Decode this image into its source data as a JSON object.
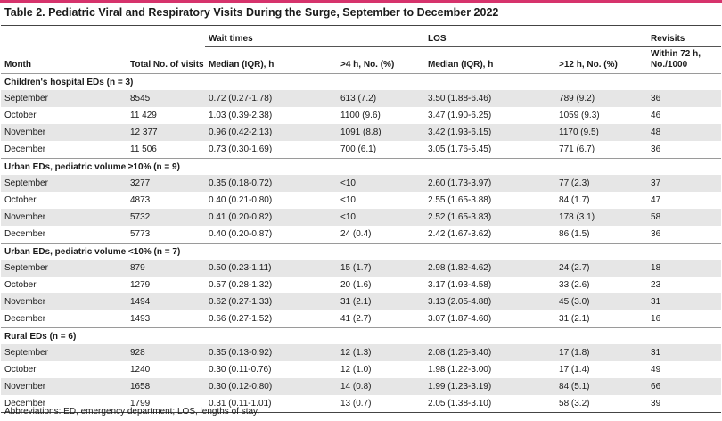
{
  "title": "Table 2. Pediatric Viral and Respiratory Visits During the Surge, September to December 2022",
  "header": {
    "group_wait": "Wait times",
    "group_los": "LOS",
    "group_revisits": "Revisits",
    "col_month": "Month",
    "col_total": "Total No. of visits",
    "col_wait_median": "Median (IQR), h",
    "col_wait_over4": ">4 h, No. (%)",
    "col_los_median": "Median (IQR), h",
    "col_los_over12": ">12 h, No. (%)",
    "col_revisits": "Within 72 h, No./1000"
  },
  "sections": [
    {
      "label": "Children's hospital EDs (n = 3)",
      "rows": [
        {
          "month": "September",
          "total": "8545",
          "wait_median": "0.72 (0.27-1.78)",
          "wait_over4": "613 (7.2)",
          "los_median": "3.50 (1.88-6.46)",
          "los_over12": "789 (9.2)",
          "revisits": "36"
        },
        {
          "month": "October",
          "total": "11 429",
          "wait_median": "1.03 (0.39-2.38)",
          "wait_over4": "1100 (9.6)",
          "los_median": "3.47 (1.90-6.25)",
          "los_over12": "1059 (9.3)",
          "revisits": "46"
        },
        {
          "month": "November",
          "total": "12 377",
          "wait_median": "0.96 (0.42-2.13)",
          "wait_over4": "1091 (8.8)",
          "los_median": "3.42 (1.93-6.15)",
          "los_over12": "1170 (9.5)",
          "revisits": "48"
        },
        {
          "month": "December",
          "total": "11 506",
          "wait_median": "0.73 (0.30-1.69)",
          "wait_over4": "700 (6.1)",
          "los_median": "3.05 (1.76-5.45)",
          "los_over12": "771 (6.7)",
          "revisits": "36"
        }
      ]
    },
    {
      "label": "Urban EDs, pediatric volume ≥10% (n = 9)",
      "rows": [
        {
          "month": "September",
          "total": "3277",
          "wait_median": "0.35 (0.18-0.72)",
          "wait_over4": "<10",
          "los_median": "2.60 (1.73-3.97)",
          "los_over12": "77 (2.3)",
          "revisits": "37"
        },
        {
          "month": "October",
          "total": "4873",
          "wait_median": "0.40 (0.21-0.80)",
          "wait_over4": "<10",
          "los_median": "2.55 (1.65-3.88)",
          "los_over12": "84 (1.7)",
          "revisits": "47"
        },
        {
          "month": "November",
          "total": "5732",
          "wait_median": "0.41 (0.20-0.82)",
          "wait_over4": "<10",
          "los_median": "2.52 (1.65-3.83)",
          "los_over12": "178 (3.1)",
          "revisits": "58"
        },
        {
          "month": "December",
          "total": "5773",
          "wait_median": "0.40 (0.20-0.87)",
          "wait_over4": "24 (0.4)",
          "los_median": "2.42 (1.67-3.62)",
          "los_over12": "86 (1.5)",
          "revisits": "36"
        }
      ]
    },
    {
      "label": "Urban EDs, pediatric volume <10% (n = 7)",
      "rows": [
        {
          "month": "September",
          "total": "879",
          "wait_median": "0.50 (0.23-1.11)",
          "wait_over4": "15 (1.7)",
          "los_median": "2.98 (1.82-4.62)",
          "los_over12": "24 (2.7)",
          "revisits": "18"
        },
        {
          "month": "October",
          "total": "1279",
          "wait_median": "0.57 (0.28-1.32)",
          "wait_over4": "20 (1.6)",
          "los_median": "3.17 (1.93-4.58)",
          "los_over12": "33 (2.6)",
          "revisits": "23"
        },
        {
          "month": "November",
          "total": "1494",
          "wait_median": "0.62 (0.27-1.33)",
          "wait_over4": "31 (2.1)",
          "los_median": "3.13 (2.05-4.88)",
          "los_over12": "45 (3.0)",
          "revisits": "31"
        },
        {
          "month": "December",
          "total": "1493",
          "wait_median": "0.66 (0.27-1.52)",
          "wait_over4": "41 (2.7)",
          "los_median": "3.07 (1.87-4.60)",
          "los_over12": "31 (2.1)",
          "revisits": "16"
        }
      ]
    },
    {
      "label": "Rural EDs (n = 6)",
      "rows": [
        {
          "month": "September",
          "total": "928",
          "wait_median": "0.35 (0.13-0.92)",
          "wait_over4": "12 (1.3)",
          "los_median": "2.08 (1.25-3.40)",
          "los_over12": "17 (1.8)",
          "revisits": "31"
        },
        {
          "month": "October",
          "total": "1240",
          "wait_median": "0.30 (0.11-0.76)",
          "wait_over4": "12 (1.0)",
          "los_median": "1.98 (1.22-3.00)",
          "los_over12": "17 (1.4)",
          "revisits": "49"
        },
        {
          "month": "November",
          "total": "1658",
          "wait_median": "0.30 (0.12-0.80)",
          "wait_over4": "14 (0.8)",
          "los_median": "1.99 (1.23-3.19)",
          "los_over12": "84 (5.1)",
          "revisits": "66"
        },
        {
          "month": "December",
          "total": "1799",
          "wait_median": "0.31 (0.11-1.01)",
          "wait_over4": "13 (0.7)",
          "los_median": "2.05 (1.38-3.10)",
          "los_over12": "58 (3.2)",
          "revisits": "39"
        }
      ]
    }
  ],
  "footnote": "Abbreviations: ED, emergency department; LOS, lengths of stay.",
  "colors": {
    "accent_rule": "#d6336c",
    "row_shade": "#e6e6e6"
  }
}
